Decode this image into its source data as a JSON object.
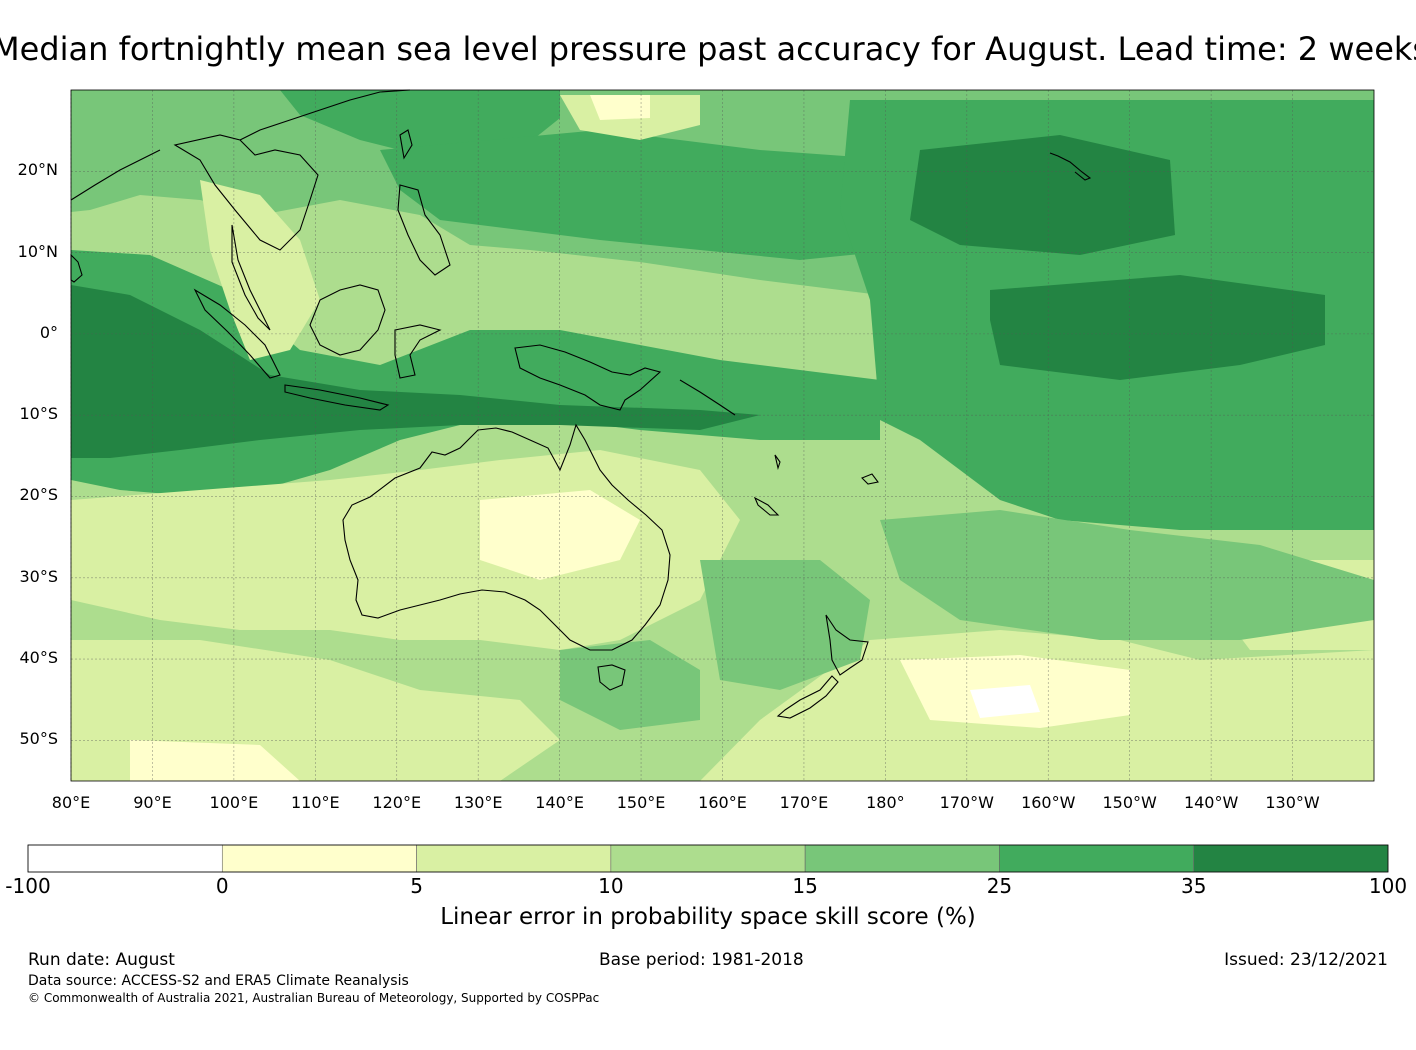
{
  "title": "Median fortnightly mean sea level pressure past accuracy for August. Lead time: 2 weeks",
  "map": {
    "lat_ticks": [
      "20°N",
      "10°N",
      "0°",
      "10°S",
      "20°S",
      "30°S",
      "40°S",
      "50°S"
    ],
    "lon_ticks": [
      "80°E",
      "90°E",
      "100°E",
      "110°E",
      "120°E",
      "130°E",
      "140°E",
      "150°E",
      "160°E",
      "170°E",
      "180°",
      "170°W",
      "160°W",
      "150°W",
      "140°W",
      "130°W"
    ],
    "lat_range": [
      -55,
      30
    ],
    "lon_range": [
      80,
      240
    ]
  },
  "colorbar": {
    "ticks": [
      "-100",
      "0",
      "5",
      "10",
      "15",
      "25",
      "35",
      "100"
    ],
    "colors": [
      "#ffffff",
      "#ffffcc",
      "#d9f0a3",
      "#addd8e",
      "#78c679",
      "#41ab5d",
      "#238443"
    ],
    "label": "Linear error in probability space skill score (%)"
  },
  "footer": {
    "run_date": "Run date: August",
    "base_period": "Base period: 1981-2018",
    "issued": "Issued: 23/12/2021",
    "data_source": "Data source: ACCESS-S2 and ERA5 Climate Reanalysis",
    "copyright": "© Commonwealth of Australia 2021, Australian Bureau of Meteorology, Supported by COSPPac"
  }
}
